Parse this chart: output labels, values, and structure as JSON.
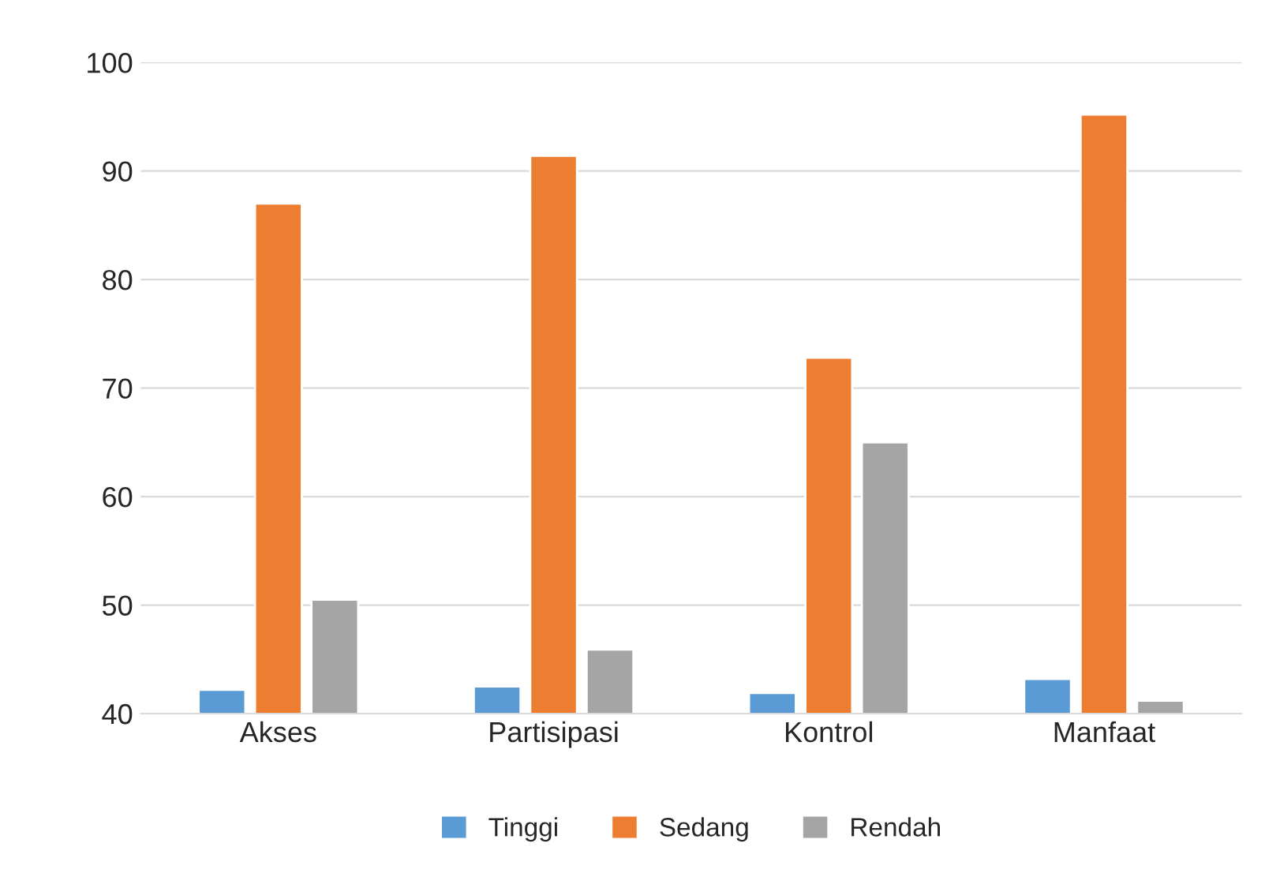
{
  "chart_data": {
    "type": "bar",
    "categories": [
      "Akses",
      "Partisipasi",
      "Kontrol",
      "Manfaat"
    ],
    "series": [
      {
        "name": "Tinggi",
        "color": "#5b9bd5",
        "values": [
          42.2,
          42.5,
          41.9,
          43.2
        ]
      },
      {
        "name": "Sedang",
        "color": "#ed7d31",
        "values": [
          87.0,
          91.4,
          72.8,
          95.2
        ]
      },
      {
        "name": "Rendah",
        "color": "#a5a5a5",
        "values": [
          50.5,
          45.9,
          65.0,
          41.2
        ]
      }
    ],
    "ylim": [
      40,
      100
    ],
    "yticks": [
      40,
      50,
      60,
      70,
      80,
      90,
      100
    ],
    "grid": "y",
    "legend": "bottom"
  }
}
